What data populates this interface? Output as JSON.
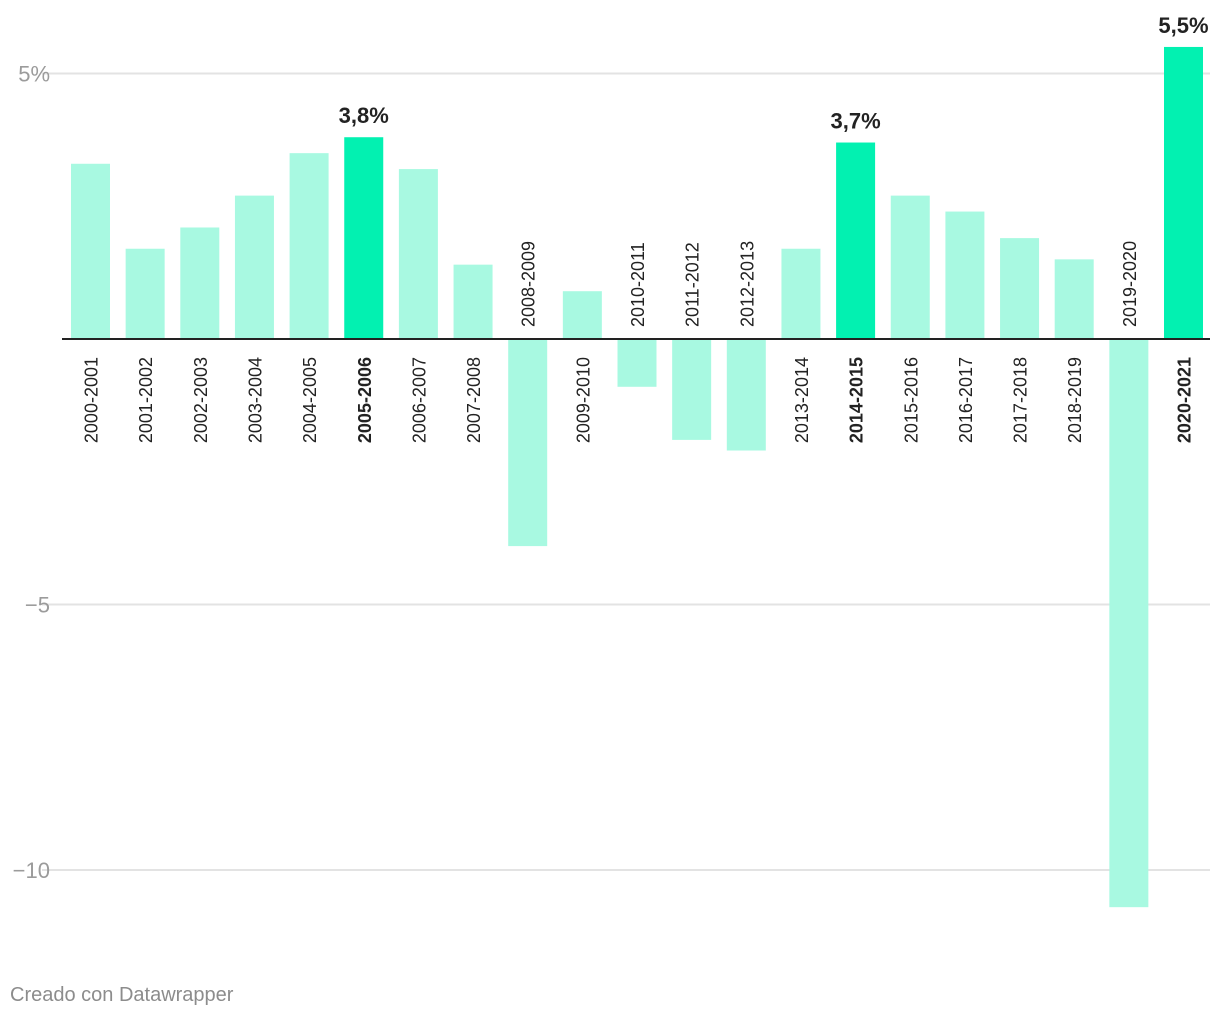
{
  "chart_data": {
    "type": "bar",
    "categories": [
      "2000-2001",
      "2001-2002",
      "2002-2003",
      "2003-2004",
      "2004-2005",
      "2005-2006",
      "2006-2007",
      "2007-2008",
      "2008-2009",
      "2009-2010",
      "2010-2011",
      "2011-2012",
      "2012-2013",
      "2013-2014",
      "2014-2015",
      "2015-2016",
      "2016-2017",
      "2017-2018",
      "2018-2019",
      "2019-2020",
      "2020-2021"
    ],
    "values": [
      3.3,
      1.7,
      2.1,
      2.7,
      3.5,
      3.8,
      3.2,
      1.4,
      -3.9,
      0.9,
      -0.9,
      -1.9,
      -2.1,
      1.7,
      3.7,
      2.7,
      2.4,
      1.9,
      1.5,
      -10.7,
      5.5
    ],
    "highlighted": [
      "2005-2006",
      "2014-2015",
      "2020-2021"
    ],
    "value_labels": {
      "2005-2006": "3,8%",
      "2014-2015": "3,7%",
      "2020-2021": "5,5%"
    },
    "y_ticks": [
      {
        "value": 5,
        "label": "5%"
      },
      {
        "value": -5,
        "label": "−5"
      },
      {
        "value": -10,
        "label": "−10"
      }
    ],
    "ylim": [
      -11.2,
      6.3
    ],
    "grid": true,
    "colors": {
      "base": "#a8f9e1",
      "highlight": "#02f1b1",
      "grid": "#e3e3e3",
      "axis": "#222222",
      "tick_text": "#9b9b9b",
      "label_text": "#222222"
    }
  },
  "footer": {
    "credit": "Creado con Datawrapper"
  }
}
